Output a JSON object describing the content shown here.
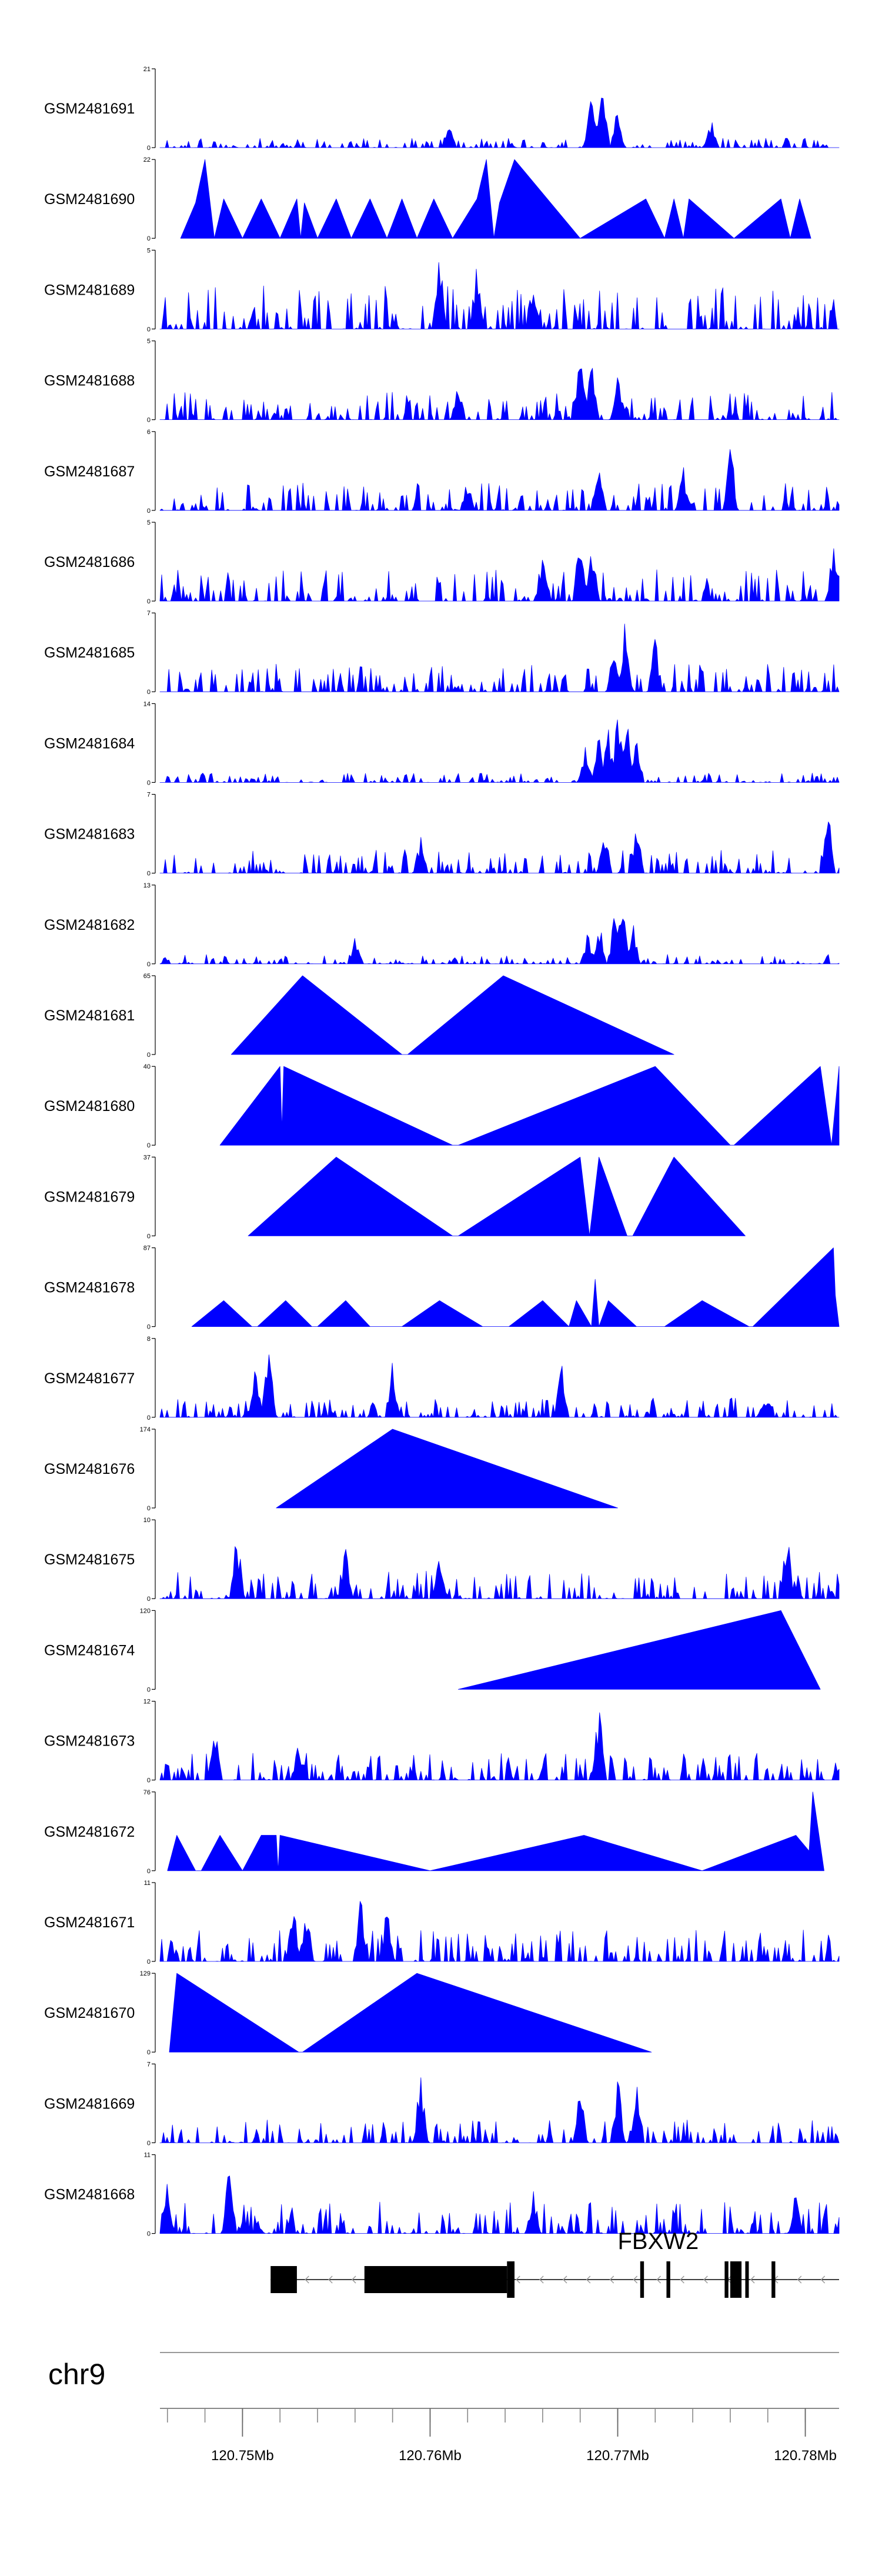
{
  "chart_data": {
    "type": "area",
    "fill_color": "#0000ff",
    "x_unit": "Mb",
    "x_range": [
      120.7456,
      120.7818
    ],
    "tracks": [
      {
        "name": "GSM2481691",
        "ymax": "21",
        "ymin": "0",
        "style": "dense",
        "seed": 11,
        "base_height": 0.12,
        "peaks": [
          [
            120.7692,
            1.0
          ],
          [
            120.7686,
            0.7
          ],
          [
            120.77,
            0.55
          ],
          [
            120.775,
            0.45
          ],
          [
            120.761,
            0.35
          ]
        ]
      },
      {
        "name": "GSM2481690",
        "ymax": "22",
        "ymin": "0",
        "style": "points",
        "points": [
          [
            120.7467,
            0
          ],
          [
            120.7475,
            0.45
          ],
          [
            120.748,
            1.0
          ],
          [
            120.7485,
            0
          ],
          [
            120.749,
            0.5
          ],
          [
            120.75,
            0
          ],
          [
            120.751,
            0.5
          ],
          [
            120.752,
            0
          ],
          [
            120.7529,
            0.5
          ],
          [
            120.7531,
            0
          ],
          [
            120.7533,
            0.45
          ],
          [
            120.754,
            0
          ],
          [
            120.755,
            0.5
          ],
          [
            120.7558,
            0
          ],
          [
            120.7568,
            0.5
          ],
          [
            120.7577,
            0
          ],
          [
            120.7585,
            0.5
          ],
          [
            120.7593,
            0
          ],
          [
            120.7602,
            0.5
          ],
          [
            120.7612,
            0
          ],
          [
            120.7625,
            0.5
          ],
          [
            120.763,
            1.0
          ],
          [
            120.7634,
            0
          ],
          [
            120.7637,
            0.45
          ],
          [
            120.7645,
            1.0
          ],
          [
            120.768,
            0
          ],
          [
            120.7715,
            0.5
          ],
          [
            120.7725,
            0
          ],
          [
            120.773,
            0.5
          ],
          [
            120.7735,
            0
          ],
          [
            120.7738,
            0.5
          ],
          [
            120.7762,
            0
          ],
          [
            120.7787,
            0.5
          ],
          [
            120.7792,
            0
          ],
          [
            120.7797,
            0.5
          ],
          [
            120.7803,
            0
          ]
        ]
      },
      {
        "name": "GSM2481689",
        "ymax": "5",
        "ymin": "0",
        "style": "dense",
        "seed": 23,
        "base_height": 0.55,
        "peaks": [
          [
            120.7605,
            1.0
          ],
          [
            120.7625,
            0.9
          ],
          [
            120.7655,
            0.85
          ]
        ]
      },
      {
        "name": "GSM2481688",
        "ymax": "5",
        "ymin": "0",
        "style": "dense",
        "seed": 31,
        "base_height": 0.35,
        "peaks": [
          [
            120.768,
            1.0
          ],
          [
            120.7686,
            0.8
          ],
          [
            120.77,
            0.75
          ],
          [
            120.7615,
            0.6
          ]
        ]
      },
      {
        "name": "GSM2481687",
        "ymax": "6",
        "ymin": "0",
        "style": "dense",
        "seed": 37,
        "base_height": 0.35,
        "peaks": [
          [
            120.776,
            1.0
          ],
          [
            120.7735,
            0.6
          ],
          [
            120.769,
            0.6
          ],
          [
            120.762,
            0.45
          ]
        ]
      },
      {
        "name": "GSM2481686",
        "ymax": "5",
        "ymin": "0",
        "style": "dense",
        "seed": 41,
        "base_height": 0.4,
        "peaks": [
          [
            120.768,
            1.0
          ],
          [
            120.7686,
            0.95
          ],
          [
            120.7815,
            0.8
          ],
          [
            120.766,
            0.7
          ]
        ]
      },
      {
        "name": "GSM2481685",
        "ymax": "7",
        "ymin": "0",
        "style": "dense",
        "seed": 43,
        "base_height": 0.35,
        "peaks": [
          [
            120.7704,
            1.0
          ],
          [
            120.772,
            0.75
          ],
          [
            120.7698,
            0.6
          ]
        ]
      },
      {
        "name": "GSM2481684",
        "ymax": "14",
        "ymin": "0",
        "style": "dense",
        "seed": 47,
        "base_height": 0.12,
        "peaks": [
          [
            120.77,
            1.0
          ],
          [
            120.7705,
            0.9
          ],
          [
            120.769,
            0.65
          ],
          [
            120.771,
            0.7
          ],
          [
            120.7683,
            0.5
          ],
          [
            120.7695,
            0.75
          ]
        ]
      },
      {
        "name": "GSM2481683",
        "ymax": "7",
        "ymin": "0",
        "style": "dense",
        "seed": 53,
        "base_height": 0.3,
        "peaks": [
          [
            120.7812,
            1.0
          ],
          [
            120.771,
            0.7
          ],
          [
            120.7693,
            0.6
          ],
          [
            120.7595,
            0.5
          ]
        ]
      },
      {
        "name": "GSM2481682",
        "ymax": "13",
        "ymin": "0",
        "style": "dense",
        "seed": 59,
        "base_height": 0.12,
        "peaks": [
          [
            120.7699,
            1.0
          ],
          [
            120.7703,
            0.8
          ],
          [
            120.769,
            0.6
          ],
          [
            120.7708,
            0.6
          ],
          [
            120.7684,
            0.4
          ],
          [
            120.756,
            0.35
          ]
        ]
      },
      {
        "name": "GSM2481681",
        "ymax": "65",
        "ymin": "0",
        "style": "points",
        "points": [
          [
            120.7494,
            0
          ],
          [
            120.7532,
            1.0
          ],
          [
            120.7585,
            0
          ],
          [
            120.7588,
            0
          ],
          [
            120.7639,
            1.0
          ],
          [
            120.773,
            0
          ]
        ]
      },
      {
        "name": "GSM2481680",
        "ymax": "40",
        "ymin": "0",
        "style": "points",
        "points": [
          [
            120.7488,
            0
          ],
          [
            120.752,
            1.0
          ],
          [
            120.7521,
            0.2
          ],
          [
            120.7522,
            1.0
          ],
          [
            120.7612,
            0
          ],
          [
            120.7615,
            0
          ],
          [
            120.772,
            1.0
          ],
          [
            120.776,
            0
          ],
          [
            120.7762,
            0
          ],
          [
            120.7808,
            1.0
          ],
          [
            120.7814,
            0
          ],
          [
            120.7818,
            1.0
          ],
          [
            120.7818,
            0
          ]
        ]
      },
      {
        "name": "GSM2481679",
        "ymax": "37",
        "ymin": "0",
        "style": "points",
        "points": [
          [
            120.7503,
            0
          ],
          [
            120.755,
            1.0
          ],
          [
            120.7612,
            0
          ],
          [
            120.7615,
            0
          ],
          [
            120.768,
            1.0
          ],
          [
            120.7685,
            0
          ],
          [
            120.769,
            1.0
          ],
          [
            120.7705,
            0
          ],
          [
            120.7708,
            0
          ],
          [
            120.773,
            1.0
          ],
          [
            120.7768,
            0
          ]
        ]
      },
      {
        "name": "GSM2481678",
        "ymax": "87",
        "ymin": "0",
        "style": "points",
        "points": [
          [
            120.7473,
            0
          ],
          [
            120.749,
            0.33
          ],
          [
            120.7505,
            0
          ],
          [
            120.7508,
            0
          ],
          [
            120.7523,
            0.33
          ],
          [
            120.7537,
            0
          ],
          [
            120.754,
            0
          ],
          [
            120.7555,
            0.33
          ],
          [
            120.7568,
            0
          ],
          [
            120.7585,
            0
          ],
          [
            120.7605,
            0.33
          ],
          [
            120.7628,
            0
          ],
          [
            120.7642,
            0
          ],
          [
            120.766,
            0.33
          ],
          [
            120.7674,
            0
          ],
          [
            120.7678,
            0.33
          ],
          [
            120.7686,
            0
          ],
          [
            120.7688,
            0.6
          ],
          [
            120.769,
            0
          ],
          [
            120.7695,
            0.33
          ],
          [
            120.771,
            0
          ],
          [
            120.7725,
            0
          ],
          [
            120.7745,
            0.33
          ],
          [
            120.777,
            0
          ],
          [
            120.7772,
            0
          ],
          [
            120.7815,
            1.0
          ],
          [
            120.7816,
            0.4
          ],
          [
            120.7818,
            0
          ]
        ]
      },
      {
        "name": "GSM2481677",
        "ymax": "8",
        "ymin": "0",
        "style": "dense",
        "seed": 61,
        "base_height": 0.25,
        "peaks": [
          [
            120.7514,
            1.0
          ],
          [
            120.7507,
            0.75
          ],
          [
            120.758,
            0.75
          ],
          [
            120.767,
            0.75
          ],
          [
            120.7778,
            0.35
          ]
        ]
      },
      {
        "name": "GSM2481676",
        "ymax": "174",
        "ymin": "0",
        "style": "points",
        "points": [
          [
            120.7518,
            0
          ],
          [
            120.758,
            1.0
          ],
          [
            120.77,
            0
          ]
        ]
      },
      {
        "name": "GSM2481675",
        "ymax": "10",
        "ymin": "0",
        "style": "dense",
        "seed": 67,
        "base_height": 0.35,
        "peaks": [
          [
            120.7497,
            0.95
          ],
          [
            120.779,
            1.0
          ],
          [
            120.7555,
            0.7
          ],
          [
            120.7605,
            0.6
          ]
        ]
      },
      {
        "name": "GSM2481674",
        "ymax": "120",
        "ymin": "0",
        "style": "points",
        "points": [
          [
            120.7615,
            0
          ],
          [
            120.7787,
            1.0
          ],
          [
            120.7808,
            0
          ]
        ]
      },
      {
        "name": "GSM2481673",
        "ymax": "12",
        "ymin": "0",
        "style": "dense",
        "seed": 71,
        "base_height": 0.35,
        "peaks": [
          [
            120.769,
            1.0
          ],
          [
            120.7485,
            0.8
          ],
          [
            120.753,
            0.55
          ]
        ]
      },
      {
        "name": "GSM2481672",
        "ymax": "76",
        "ymin": "0",
        "style": "points",
        "points": [
          [
            120.746,
            0
          ],
          [
            120.7465,
            0.45
          ],
          [
            120.7475,
            0
          ],
          [
            120.7478,
            0
          ],
          [
            120.7488,
            0.45
          ],
          [
            120.75,
            0
          ],
          [
            120.751,
            0.45
          ],
          [
            120.7518,
            0.45
          ],
          [
            120.7519,
            0
          ],
          [
            120.752,
            0.45
          ],
          [
            120.76,
            0
          ],
          [
            120.7682,
            0.45
          ],
          [
            120.7745,
            0
          ],
          [
            120.7795,
            0.45
          ],
          [
            120.7802,
            0.25
          ],
          [
            120.7804,
            1.0
          ],
          [
            120.781,
            0
          ]
        ]
      },
      {
        "name": "GSM2481671",
        "ymax": "11",
        "ymin": "0",
        "style": "dense",
        "seed": 73,
        "base_height": 0.4,
        "peaks": [
          [
            120.7563,
            1.0
          ],
          [
            120.7527,
            0.95
          ],
          [
            120.7577,
            0.8
          ],
          [
            120.7534,
            0.75
          ]
        ]
      },
      {
        "name": "GSM2481670",
        "ymax": "129",
        "ymin": "0",
        "style": "points",
        "points": [
          [
            120.7461,
            0
          ],
          [
            120.7465,
            1.0
          ],
          [
            120.753,
            0
          ],
          [
            120.7532,
            0
          ],
          [
            120.7593,
            1.0
          ],
          [
            120.7718,
            0
          ]
        ]
      },
      {
        "name": "GSM2481669",
        "ymax": "7",
        "ymin": "0",
        "style": "dense",
        "seed": 79,
        "base_height": 0.3,
        "peaks": [
          [
            120.7595,
            1.0
          ],
          [
            120.77,
            0.9
          ],
          [
            120.771,
            0.85
          ],
          [
            120.768,
            0.75
          ]
        ]
      },
      {
        "name": "GSM2481668",
        "ymax": "11",
        "ymin": "0",
        "style": "dense",
        "seed": 83,
        "base_height": 0.4,
        "peaks": [
          [
            120.7493,
            1.0
          ],
          [
            120.746,
            0.7
          ],
          [
            120.7655,
            0.65
          ],
          [
            120.7795,
            0.6
          ]
        ]
      }
    ],
    "gene": {
      "name": "FBXW2",
      "strand": "-",
      "intron_range": [
        120.7515,
        120.7818
      ],
      "exons": [
        [
          120.7515,
          120.7529
        ],
        [
          120.7565,
          120.7641
        ],
        [
          120.7641,
          120.7645
        ],
        [
          120.7712,
          120.7714
        ],
        [
          120.7726,
          120.7728
        ],
        [
          120.7757,
          120.7759
        ],
        [
          120.776,
          120.7766
        ],
        [
          120.7768,
          120.7769
        ],
        [
          120.7782,
          120.7784
        ]
      ]
    },
    "chromosome": "chr9",
    "axis": {
      "major_ticks": [
        120.75,
        120.76,
        120.77,
        120.78
      ],
      "tick_labels": [
        "120.75Mb",
        "120.76Mb",
        "120.77Mb",
        "120.78Mb"
      ],
      "minor_step": 0.002
    }
  }
}
